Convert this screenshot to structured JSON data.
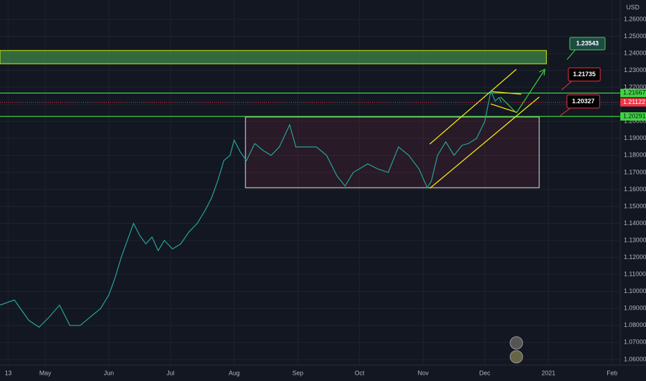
{
  "chart_data": {
    "type": "line",
    "currency": "USD",
    "color": "#26a69a",
    "x": [
      -4,
      3,
      10,
      15,
      20,
      25,
      30,
      35,
      40,
      45,
      49,
      52,
      55,
      58,
      61,
      64,
      67,
      70,
      73,
      76,
      80,
      84,
      88,
      92,
      96,
      99,
      102,
      105,
      108,
      110,
      113,
      116,
      120,
      124,
      128,
      132,
      137,
      140,
      144,
      150,
      155,
      160,
      164,
      168,
      175,
      180,
      185,
      190,
      195,
      200,
      204,
      206,
      209,
      213,
      217,
      221,
      224,
      228,
      232,
      234,
      235,
      237,
      239,
      240
    ],
    "values": [
      1.092,
      1.095,
      1.083,
      1.079,
      1.085,
      1.092,
      1.08,
      1.08,
      1.085,
      1.09,
      1.098,
      1.108,
      1.12,
      1.13,
      1.14,
      1.133,
      1.128,
      1.132,
      1.124,
      1.13,
      1.125,
      1.128,
      1.135,
      1.14,
      1.148,
      1.155,
      1.165,
      1.177,
      1.18,
      1.189,
      1.182,
      1.177,
      1.187,
      1.183,
      1.18,
      1.185,
      1.198,
      1.185,
      1.185,
      1.185,
      1.18,
      1.168,
      1.162,
      1.17,
      1.175,
      1.172,
      1.17,
      1.185,
      1.18,
      1.172,
      1.161,
      1.165,
      1.18,
      1.188,
      1.18,
      1.186,
      1.187,
      1.19,
      1.2,
      1.212,
      1.218,
      1.212,
      1.214,
      1.21122
    ],
    "xlim": [
      -4,
      298
    ],
    "ylim": [
      1.0567,
      1.2714
    ],
    "xticks": [
      {
        "value": 0,
        "label": "13"
      },
      {
        "value": 18,
        "label": "May"
      },
      {
        "value": 49,
        "label": "Jun"
      },
      {
        "value": 79,
        "label": "Jul"
      },
      {
        "value": 110,
        "label": "Aug"
      },
      {
        "value": 141,
        "label": "Sep"
      },
      {
        "value": 171,
        "label": "Oct"
      },
      {
        "value": 202,
        "label": "Nov"
      },
      {
        "value": 232,
        "label": "Dec"
      },
      {
        "value": 263,
        "label": "2021"
      },
      {
        "value": 294,
        "label": "Feb"
      }
    ],
    "yticks": [
      {
        "value": 1.06,
        "label": "1.06000"
      },
      {
        "value": 1.07,
        "label": "1.07000"
      },
      {
        "value": 1.08,
        "label": "1.08000"
      },
      {
        "value": 1.09,
        "label": "1.09000"
      },
      {
        "value": 1.1,
        "label": "1.10000"
      },
      {
        "value": 1.11,
        "label": "1.11000"
      },
      {
        "value": 1.12,
        "label": "1.12000"
      },
      {
        "value": 1.13,
        "label": "1.13000"
      },
      {
        "value": 1.14,
        "label": "1.14000"
      },
      {
        "value": 1.15,
        "label": "1.15000"
      },
      {
        "value": 1.16,
        "label": "1.16000"
      },
      {
        "value": 1.17,
        "label": "1.17000"
      },
      {
        "value": 1.18,
        "label": "1.18000"
      },
      {
        "value": 1.19,
        "label": "1.19000"
      },
      {
        "value": 1.2,
        "label": "1.20000"
      },
      {
        "value": 1.21,
        "label": "1.21000"
      },
      {
        "value": 1.22,
        "label": "1.22000"
      },
      {
        "value": 1.23,
        "label": "1.23000"
      },
      {
        "value": 1.24,
        "label": "1.24000"
      },
      {
        "value": 1.25,
        "label": "1.25000"
      },
      {
        "value": 1.26,
        "label": "1.26000"
      }
    ],
    "grid": true,
    "levels": [
      1.21667,
      1.20291
    ],
    "last_price": 1.21122,
    "zone": {
      "x": [
        -4,
        262
      ],
      "y": [
        1.2339,
        1.2417
      ]
    },
    "range_box": {
      "x": [
        115.5,
        258.5
      ],
      "y": [
        1.161,
        1.2026
      ]
    },
    "annotations": [
      "1.23543",
      "1.21735",
      "1.20327"
    ]
  }
}
